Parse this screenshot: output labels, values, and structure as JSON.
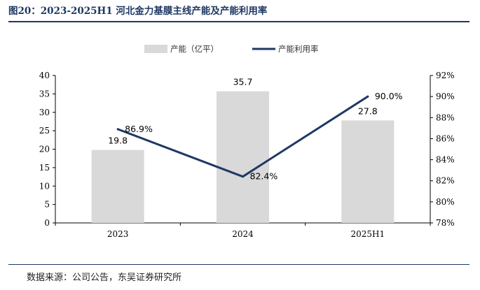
{
  "figure": {
    "title": "图20：2023-2025H1 河北金力基膜主线产能及产能利用率",
    "source": "数据来源：公司公告，东吴证券研究所"
  },
  "chart_data": {
    "type": "bar",
    "categories": [
      "2023",
      "2024",
      "2025H1"
    ],
    "series": [
      {
        "name": "产能（亿平）",
        "type": "bar",
        "axis": "left",
        "values": [
          19.8,
          35.7,
          27.8
        ],
        "labels": [
          "19.8",
          "35.7",
          "27.8"
        ],
        "color": "#d9d9d9"
      },
      {
        "name": "产能利用率",
        "type": "line",
        "axis": "right",
        "values": [
          86.9,
          82.4,
          90.0
        ],
        "labels": [
          "86.9%",
          "82.4%",
          "90.0%"
        ],
        "color": "#1f3864"
      }
    ],
    "y_left": {
      "lim": [
        0,
        40
      ],
      "ticks": [
        "0",
        "5",
        "10",
        "15",
        "20",
        "25",
        "30",
        "35",
        "40"
      ]
    },
    "y_right": {
      "lim": [
        78,
        92
      ],
      "ticks": [
        "78%",
        "80%",
        "82%",
        "84%",
        "86%",
        "88%",
        "90%",
        "92%"
      ]
    },
    "legend": "top-center",
    "grid": false
  }
}
